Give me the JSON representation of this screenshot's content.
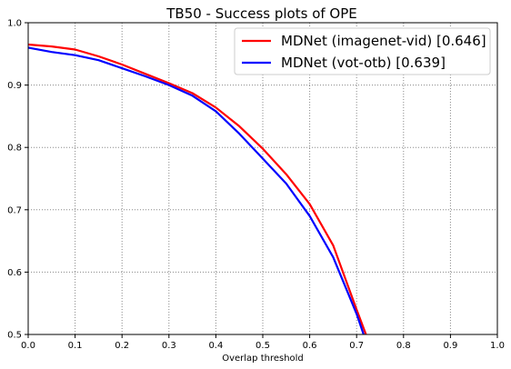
{
  "chart_data": {
    "type": "line",
    "title": "TB50 - Success plots of OPE",
    "xlabel": "Overlap threshold",
    "ylabel": "",
    "xlim": [
      0.0,
      1.0
    ],
    "ylim": [
      0.5,
      1.0
    ],
    "x_ticks": [
      "0.0",
      "0.1",
      "0.2",
      "0.3",
      "0.4",
      "0.5",
      "0.6",
      "0.7",
      "0.8",
      "0.9",
      "1.0"
    ],
    "y_ticks": [
      "0.5",
      "0.6",
      "0.7",
      "0.8",
      "0.9",
      "1.0"
    ],
    "grid": true,
    "legend_position": "top-right",
    "series": [
      {
        "name": "MDNet (imagenet-vid) [0.646]",
        "color": "#ff0000",
        "x": [
          0.0,
          0.05,
          0.1,
          0.15,
          0.2,
          0.25,
          0.3,
          0.35,
          0.4,
          0.45,
          0.5,
          0.55,
          0.6,
          0.65,
          0.7,
          0.72
        ],
        "y": [
          0.965,
          0.962,
          0.957,
          0.946,
          0.933,
          0.918,
          0.903,
          0.887,
          0.864,
          0.834,
          0.798,
          0.757,
          0.709,
          0.643,
          0.54,
          0.5
        ]
      },
      {
        "name": "MDNet (vot-otb) [0.639]",
        "color": "#0000ff",
        "x": [
          0.0,
          0.05,
          0.1,
          0.15,
          0.2,
          0.25,
          0.3,
          0.35,
          0.4,
          0.45,
          0.5,
          0.55,
          0.6,
          0.65,
          0.7,
          0.715
        ],
        "y": [
          0.96,
          0.953,
          0.948,
          0.94,
          0.927,
          0.914,
          0.9,
          0.883,
          0.858,
          0.822,
          0.782,
          0.742,
          0.69,
          0.624,
          0.533,
          0.5
        ]
      }
    ]
  }
}
